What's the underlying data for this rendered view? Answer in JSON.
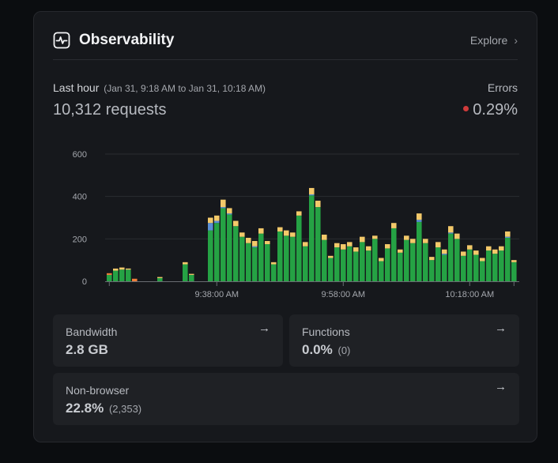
{
  "header": {
    "title": "Observability",
    "explore_label": "Explore"
  },
  "summary": {
    "range_label": "Last hour",
    "range_detail": "(Jan 31, 9:18 AM to Jan 31, 10:18 AM)",
    "requests": "10,312 requests",
    "errors_label": "Errors",
    "errors_value": "0.29%"
  },
  "colors": {
    "success": "#25a244",
    "blue": "#5a8fd6",
    "yellow": "#f3c96a",
    "orange": "#ef7e3a",
    "error_dot": "#d03b3b"
  },
  "chart_data": {
    "type": "bar",
    "stacked": true,
    "ylim": [
      0,
      600
    ],
    "yticks": [
      0,
      200,
      400,
      600
    ],
    "xtick_labels": [
      "9:38:00 AM",
      "9:58:00 AM",
      "10:18:00 AM"
    ],
    "xtick_index": [
      17,
      37,
      57
    ],
    "series": [
      {
        "name": "success",
        "color": "#25a244",
        "values": [
          30,
          50,
          55,
          55,
          0,
          0,
          0,
          0,
          15,
          0,
          0,
          0,
          80,
          30,
          0,
          0,
          240,
          275,
          345,
          315,
          260,
          210,
          180,
          160,
          225,
          175,
          80,
          235,
          215,
          210,
          310,
          165,
          405,
          350,
          195,
          110,
          160,
          150,
          165,
          140,
          185,
          145,
          200,
          95,
          155,
          250,
          135,
          195,
          180,
          280,
          180,
          100,
          160,
          125,
          225,
          200,
          120,
          150,
          125,
          95,
          145,
          130,
          145,
          205,
          90
        ],
        "labels": null
      },
      {
        "name": "blue",
        "values": [
          0,
          0,
          0,
          0,
          0,
          0,
          0,
          0,
          0,
          0,
          0,
          0,
          0,
          0,
          0,
          0,
          35,
          10,
          5,
          5,
          0,
          0,
          0,
          5,
          0,
          0,
          0,
          0,
          0,
          0,
          0,
          0,
          5,
          0,
          0,
          0,
          0,
          0,
          0,
          0,
          0,
          0,
          0,
          0,
          0,
          0,
          0,
          0,
          0,
          10,
          0,
          0,
          0,
          5,
          5,
          0,
          0,
          0,
          0,
          0,
          0,
          0,
          0,
          5,
          0
        ],
        "color": "#5a8fd6"
      },
      {
        "name": "yellow",
        "values": [
          0,
          10,
          10,
          5,
          0,
          0,
          0,
          0,
          5,
          0,
          0,
          0,
          10,
          5,
          0,
          0,
          25,
          25,
          35,
          25,
          25,
          20,
          25,
          25,
          25,
          15,
          10,
          20,
          25,
          20,
          20,
          20,
          30,
          30,
          25,
          10,
          20,
          25,
          20,
          20,
          25,
          20,
          15,
          15,
          20,
          25,
          15,
          20,
          20,
          30,
          20,
          15,
          25,
          20,
          30,
          25,
          20,
          20,
          20,
          15,
          20,
          20,
          20,
          25,
          10
        ],
        "color": "#f3c96a"
      },
      {
        "name": "orange",
        "values": [
          8,
          0,
          0,
          0,
          12,
          0,
          0,
          0,
          0,
          0,
          0,
          0,
          0,
          0,
          0,
          0,
          0,
          0,
          0,
          0,
          0,
          0,
          0,
          0,
          0,
          0,
          0,
          0,
          0,
          0,
          0,
          0,
          0,
          0,
          0,
          0,
          0,
          0,
          0,
          0,
          0,
          0,
          0,
          0,
          0,
          0,
          0,
          0,
          0,
          0,
          0,
          0,
          0,
          0,
          0,
          0,
          0,
          0,
          0,
          0,
          0,
          0,
          0,
          0,
          0
        ],
        "color": "#ef7e3a"
      }
    ]
  },
  "stats": {
    "bandwidth": {
      "label": "Bandwidth",
      "value": "2.8 GB"
    },
    "functions": {
      "label": "Functions",
      "value": "0.0%",
      "sub": "(0)"
    },
    "nonbrowser": {
      "label": "Non-browser",
      "value": "22.8%",
      "sub": "(2,353)"
    }
  }
}
